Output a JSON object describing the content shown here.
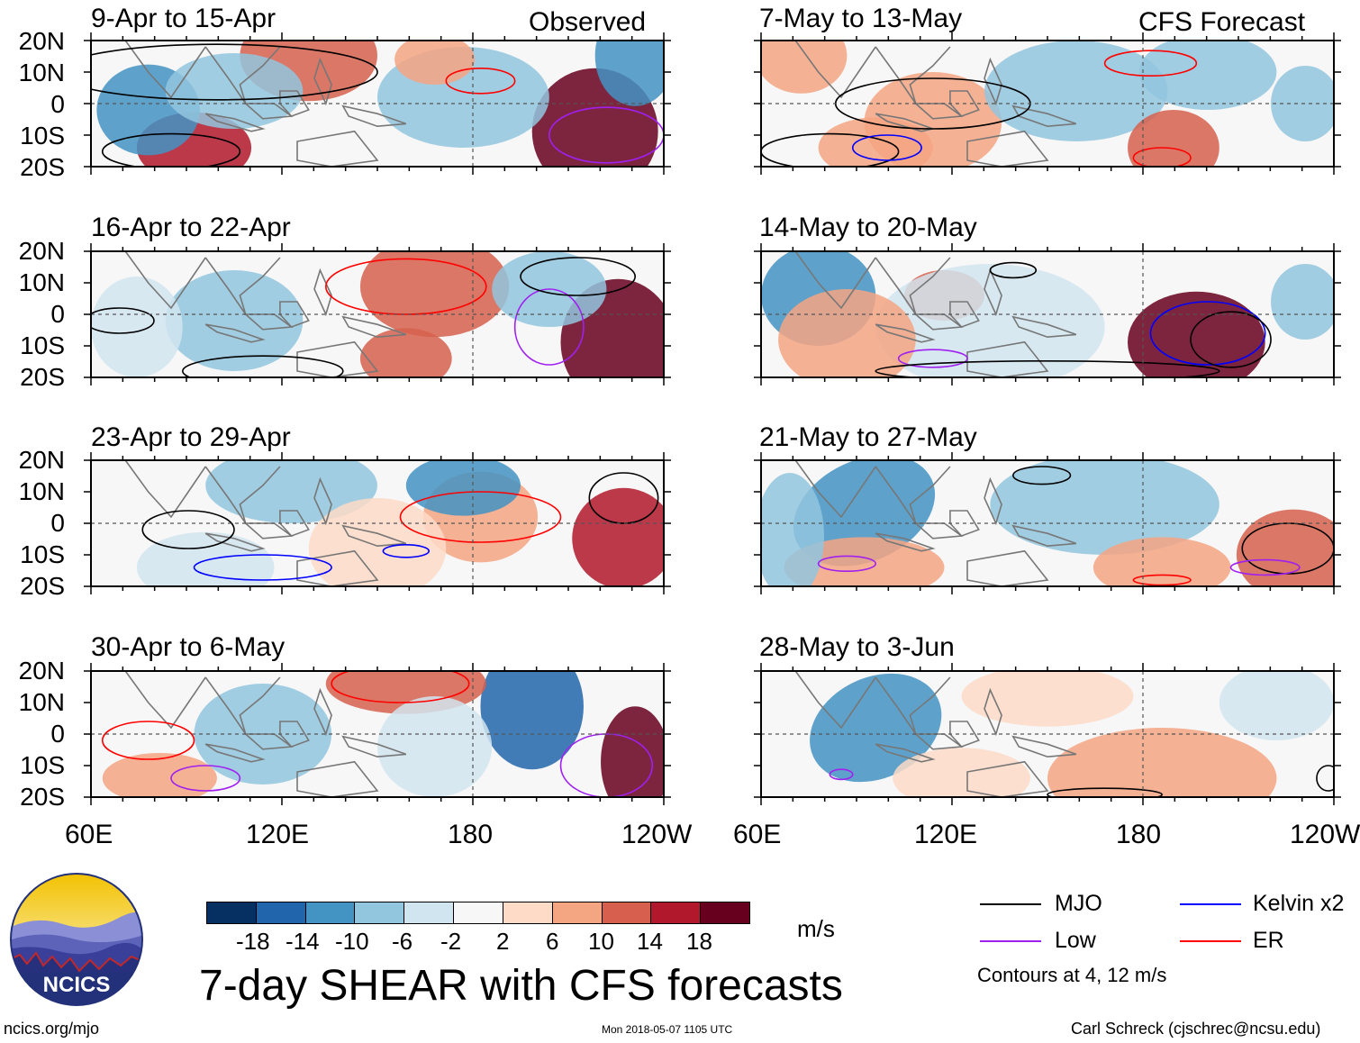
{
  "figure_title": "7-day SHEAR with CFS forecasts",
  "columns": [
    {
      "label": "Observed"
    },
    {
      "label": "CFS Forecast"
    }
  ],
  "panels": [
    {
      "title": "9-Apr to 15-Apr"
    },
    {
      "title": "16-Apr to 22-Apr"
    },
    {
      "title": "23-Apr to 29-Apr"
    },
    {
      "title": "30-Apr to 6-May"
    },
    {
      "title": "7-May to 13-May"
    },
    {
      "title": "14-May to 20-May"
    },
    {
      "title": "21-May to 27-May"
    },
    {
      "title": "28-May to 3-Jun"
    }
  ],
  "chart_data": {
    "type": "heatmap",
    "title": "7-day SHEAR with CFS forecasts",
    "variable": "7-day SHEAR",
    "units": "m/s",
    "x_ticks": [
      "60E",
      "120E",
      "180",
      "120W"
    ],
    "y_ticks": [
      "20N",
      "10N",
      "0",
      "10S",
      "20S"
    ],
    "xlim": [
      60,
      240
    ],
    "ylim": [
      -20,
      20
    ],
    "colorbar": {
      "ticks": [
        "-18",
        "-14",
        "-10",
        "-6",
        "-2",
        "2",
        "6",
        "10",
        "14",
        "18"
      ],
      "colors": [
        "#053061",
        "#2166ac",
        "#4393c3",
        "#92c5de",
        "#d1e5f0",
        "#f7f7f7",
        "#fddbc7",
        "#f4a582",
        "#d6604d",
        "#b2182b",
        "#67001f"
      ]
    },
    "contour_note": "Contours at 4, 12 m/s",
    "legend": [
      {
        "label": "MJO",
        "color": "#000000"
      },
      {
        "label": "Kelvin x2",
        "color": "#0000ff"
      },
      {
        "label": "Low",
        "color": "#a020f0"
      },
      {
        "label": "ER",
        "color": "#ff0000"
      }
    ]
  },
  "footer": {
    "site": "ncics.org/mjo",
    "timestamp": "Mon 2018-05-07 1105 UTC",
    "author": "Carl Schreck (cjschrec@ncsu.edu)"
  },
  "logo": {
    "text": "NCICS"
  }
}
